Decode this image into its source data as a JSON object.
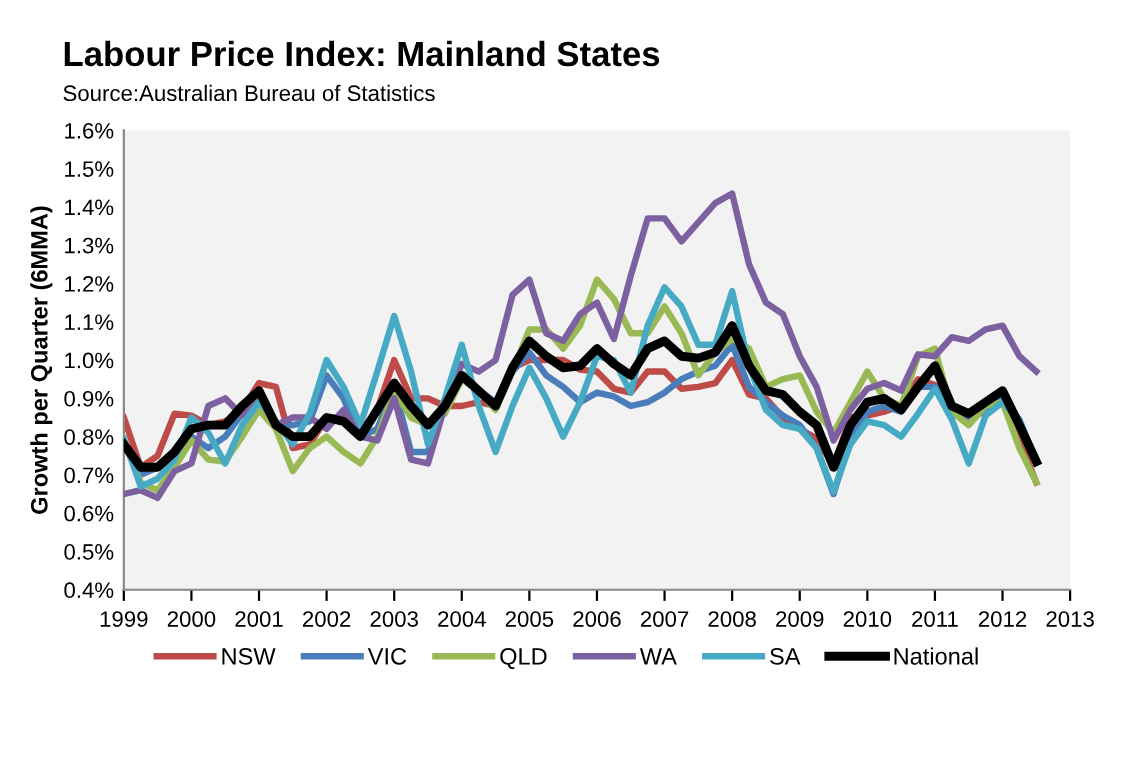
{
  "chart_data": {
    "type": "line",
    "title": "Labour Price Index: Mainland States",
    "subtitle": "Source:Australian Bureau of Statistics",
    "ylabel": "Growth per Quarter (6MMA)",
    "x": [
      1999,
      1999.25,
      1999.5,
      1999.75,
      2000,
      2000.25,
      2000.5,
      2000.75,
      2001,
      2001.25,
      2001.5,
      2001.75,
      2002,
      2002.25,
      2002.5,
      2002.75,
      2003,
      2003.25,
      2003.5,
      2003.75,
      2004,
      2004.25,
      2004.5,
      2004.75,
      2005,
      2005.25,
      2005.5,
      2005.75,
      2006,
      2006.25,
      2006.5,
      2006.75,
      2007,
      2007.25,
      2007.5,
      2007.75,
      2008,
      2008.25,
      2008.5,
      2008.75,
      2009,
      2009.25,
      2009.5,
      2009.75,
      2010,
      2010.25,
      2010.5,
      2010.75,
      2011,
      2011.25,
      2011.5,
      2011.75,
      2012,
      2012.25,
      2012.5
    ],
    "series": [
      {
        "name": "NSW",
        "color": "#be4b48",
        "values": [
          0.85,
          0.72,
          0.75,
          0.86,
          0.855,
          0.83,
          0.84,
          0.87,
          0.94,
          0.93,
          0.77,
          0.78,
          0.85,
          0.85,
          0.8,
          0.87,
          1.0,
          0.9,
          0.9,
          0.88,
          0.88,
          0.89,
          0.88,
          0.98,
          1.0,
          1.0,
          1.0,
          0.975,
          0.97,
          0.925,
          0.915,
          0.97,
          0.97,
          0.925,
          0.93,
          0.94,
          1.0,
          0.91,
          0.9,
          0.85,
          0.82,
          0.795,
          0.725,
          0.85,
          0.855,
          0.865,
          0.88,
          0.95,
          0.935,
          0.865,
          0.85,
          0.865,
          0.9,
          0.79,
          0.68
        ]
      },
      {
        "name": "VIC",
        "color": "#4a7ebb",
        "values": [
          0.78,
          0.7,
          0.72,
          0.76,
          0.8,
          0.77,
          0.8,
          0.86,
          0.9,
          0.83,
          0.83,
          0.84,
          0.96,
          0.9,
          0.8,
          0.82,
          0.93,
          0.76,
          0.76,
          0.88,
          0.95,
          0.92,
          0.89,
          0.97,
          1.02,
          0.96,
          0.93,
          0.89,
          0.915,
          0.905,
          0.88,
          0.89,
          0.915,
          0.95,
          0.97,
          0.985,
          1.04,
          0.93,
          0.89,
          0.855,
          0.83,
          0.77,
          0.65,
          0.795,
          0.865,
          0.88,
          0.865,
          0.93,
          0.93,
          0.865,
          0.85,
          0.87,
          0.9,
          0.84,
          0.735
        ]
      },
      {
        "name": "QLD",
        "color": "#98b954",
        "values": [
          0.79,
          0.68,
          0.66,
          0.72,
          0.79,
          0.74,
          0.735,
          0.8,
          0.87,
          0.82,
          0.71,
          0.77,
          0.8,
          0.76,
          0.73,
          0.8,
          0.92,
          0.85,
          0.83,
          0.86,
          0.95,
          0.92,
          0.87,
          0.97,
          1.08,
          1.08,
          1.03,
          1.09,
          1.21,
          1.16,
          1.07,
          1.07,
          1.14,
          1.07,
          0.96,
          1.02,
          1.055,
          1.03,
          0.93,
          0.95,
          0.96,
          0.865,
          0.81,
          0.89,
          0.97,
          0.9,
          0.88,
          1.01,
          1.03,
          0.865,
          0.83,
          0.88,
          0.89,
          0.77,
          0.68
        ]
      },
      {
        "name": "WA",
        "color": "#7d60a0",
        "values": [
          0.65,
          0.66,
          0.64,
          0.71,
          0.73,
          0.88,
          0.9,
          0.855,
          0.915,
          0.83,
          0.85,
          0.85,
          0.82,
          0.87,
          0.8,
          0.79,
          0.9,
          0.74,
          0.73,
          0.88,
          0.99,
          0.97,
          1.0,
          1.17,
          1.21,
          1.07,
          1.05,
          1.12,
          1.15,
          1.055,
          1.22,
          1.37,
          1.37,
          1.31,
          1.36,
          1.41,
          1.435,
          1.25,
          1.15,
          1.12,
          1.01,
          0.93,
          0.79,
          0.87,
          0.925,
          0.94,
          0.92,
          1.015,
          1.01,
          1.06,
          1.05,
          1.08,
          1.09,
          1.01,
          0.97
        ]
      },
      {
        "name": "SA",
        "color": "#46aac5",
        "values": [
          0.795,
          0.67,
          0.69,
          0.74,
          0.85,
          0.81,
          0.73,
          0.83,
          0.89,
          0.84,
          0.78,
          0.86,
          1.0,
          0.93,
          0.83,
          0.97,
          1.115,
          0.97,
          0.78,
          0.9,
          1.04,
          0.88,
          0.76,
          0.88,
          0.98,
          0.9,
          0.8,
          0.89,
          1.01,
          1.0,
          0.915,
          1.09,
          1.19,
          1.14,
          1.04,
          1.04,
          1.18,
          0.985,
          0.87,
          0.83,
          0.82,
          0.77,
          0.656,
          0.78,
          0.84,
          0.83,
          0.8,
          0.86,
          0.925,
          0.845,
          0.73,
          0.855,
          0.89,
          0.845,
          0.735
        ]
      },
      {
        "name": "National",
        "color": "#000000",
        "values": [
          0.78,
          0.72,
          0.72,
          0.76,
          0.82,
          0.83,
          0.83,
          0.88,
          0.92,
          0.83,
          0.8,
          0.8,
          0.85,
          0.84,
          0.8,
          0.87,
          0.94,
          0.88,
          0.83,
          0.88,
          0.96,
          0.92,
          0.88,
          0.98,
          1.05,
          1.01,
          0.98,
          0.985,
          1.03,
          0.99,
          0.96,
          1.03,
          1.05,
          1.01,
          1.005,
          1.02,
          1.09,
          0.985,
          0.92,
          0.91,
          0.865,
          0.83,
          0.72,
          0.83,
          0.89,
          0.9,
          0.87,
          0.93,
          0.985,
          0.88,
          0.86,
          0.89,
          0.92,
          0.83,
          0.735
        ]
      }
    ],
    "xlim": [
      1999,
      2013
    ],
    "xticks": [
      1999,
      2000,
      2001,
      2002,
      2003,
      2004,
      2005,
      2006,
      2007,
      2008,
      2009,
      2010,
      2011,
      2012,
      2013
    ],
    "ylim": [
      0.4,
      1.6
    ],
    "yticks": [
      {
        "value": 0.4,
        "label": "0.4%"
      },
      {
        "value": 0.5,
        "label": "0.5%"
      },
      {
        "value": 0.6,
        "label": "0.6%"
      },
      {
        "value": 0.7,
        "label": "0.7%"
      },
      {
        "value": 0.8,
        "label": "0.8%"
      },
      {
        "value": 0.9,
        "label": "0.9%"
      },
      {
        "value": 1.0,
        "label": "1.0%"
      },
      {
        "value": 1.1,
        "label": "1.1%"
      },
      {
        "value": 1.2,
        "label": "1.2%"
      },
      {
        "value": 1.3,
        "label": "1.3%"
      },
      {
        "value": 1.4,
        "label": "1.4%"
      },
      {
        "value": 1.5,
        "label": "1.5%"
      },
      {
        "value": 1.6,
        "label": "1.6%"
      }
    ],
    "grid": false,
    "legend": "bottom",
    "marker": "none",
    "line_style": "solid"
  }
}
